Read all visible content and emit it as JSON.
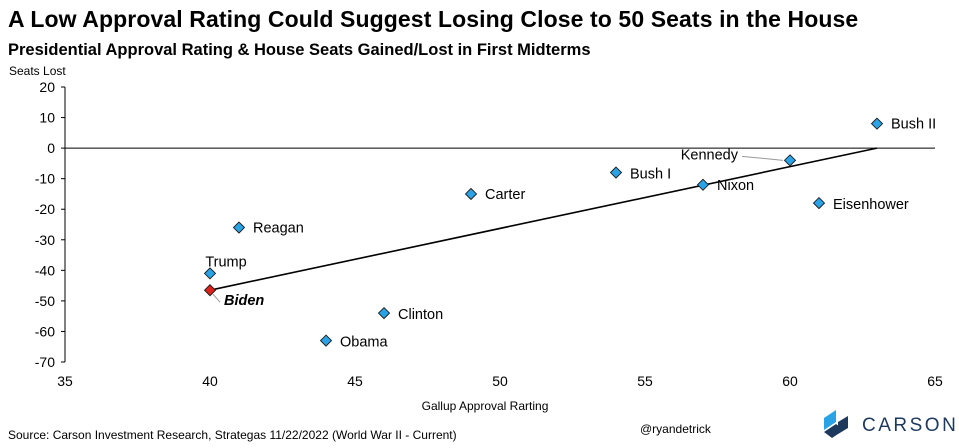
{
  "title": "A Low Approval Rating Could Suggest Losing Close to 50 Seats in the House",
  "subtitle": "Presidential Approval Rating & House Seats Gained/Lost in First Midterms",
  "source": "Source: Carson Investment Research, Strategas 11/22/2022 (World War II - Current)",
  "handle": "@ryandetrick",
  "logo": {
    "text": "CARSON"
  },
  "colors": {
    "point": "#2aa3e6",
    "highlight": "#d9231c",
    "marker_outline": "#1a1a1a",
    "trend": "#000000",
    "logo_dark": "#1d3a5c",
    "logo_light": "#2aa3e6"
  },
  "chart_data": {
    "type": "scatter",
    "ylabel": "Seats Lost",
    "xlabel": "Gallup Approval Rarting",
    "xlim": [
      35,
      65
    ],
    "ylim": [
      -70,
      20
    ],
    "xticks": [
      35,
      40,
      45,
      50,
      55,
      60,
      65
    ],
    "yticks": [
      20,
      10,
      0,
      -10,
      -20,
      -30,
      -40,
      -50,
      -60,
      -70
    ],
    "grid": false,
    "legend": "none",
    "points": [
      {
        "name": "Bush II",
        "x": 63,
        "y": 8
      },
      {
        "name": "Kennedy",
        "x": 60,
        "y": -4
      },
      {
        "name": "Bush I",
        "x": 54,
        "y": -8
      },
      {
        "name": "Nixon",
        "x": 57,
        "y": -12
      },
      {
        "name": "Carter",
        "x": 49,
        "y": -15
      },
      {
        "name": "Eisenhower",
        "x": 61,
        "y": -18
      },
      {
        "name": "Reagan",
        "x": 41,
        "y": -26
      },
      {
        "name": "Trump",
        "x": 40,
        "y": -41
      },
      {
        "name": "Biden",
        "x": 40,
        "y": -46.5,
        "highlight": true
      },
      {
        "name": "Clinton",
        "x": 46,
        "y": -54
      },
      {
        "name": "Obama",
        "x": 44,
        "y": -63
      }
    ],
    "trendline": {
      "x": [
        40,
        63
      ],
      "y": [
        -46.5,
        0
      ]
    }
  }
}
